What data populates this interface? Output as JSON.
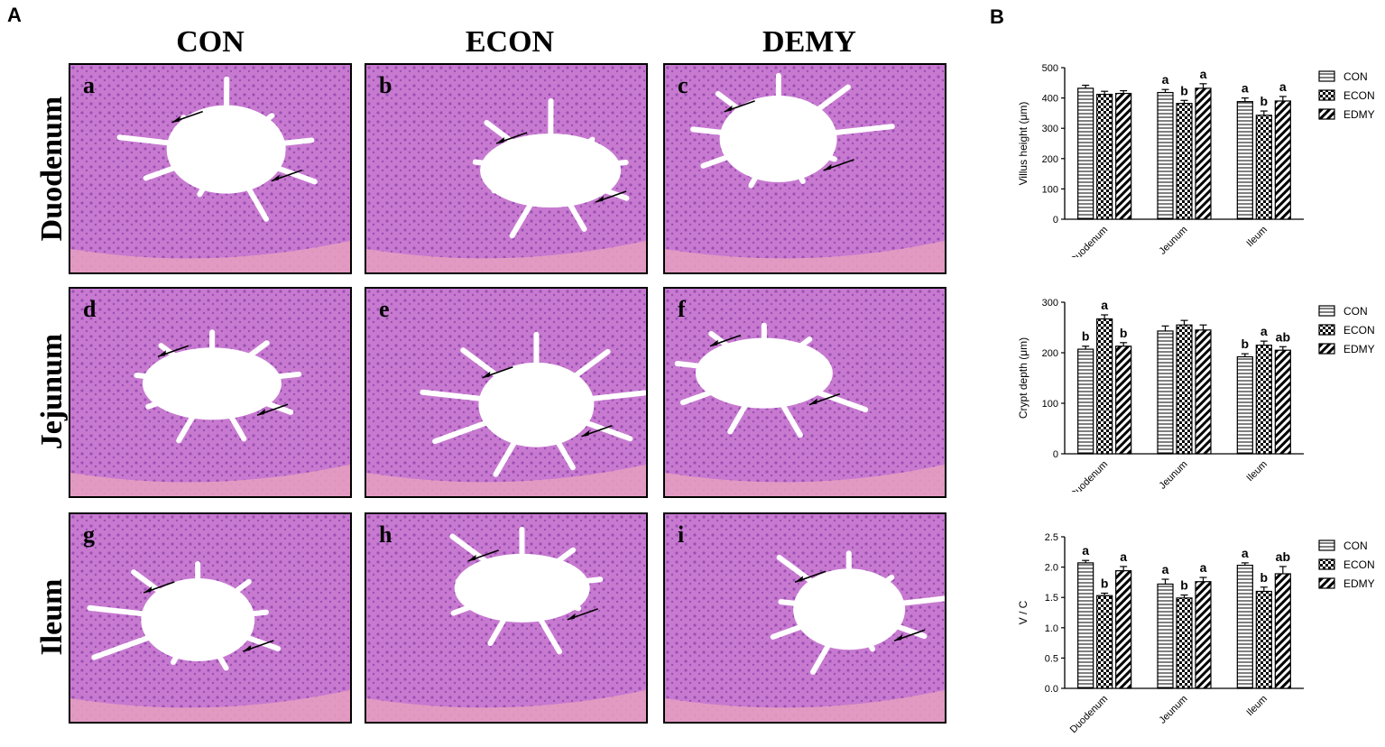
{
  "panel_a_label": "A",
  "panel_b_label": "B",
  "columns": [
    "CON",
    "ECON",
    "DEMY"
  ],
  "rows": [
    "Duodenum",
    "Jejunum",
    "Ileum"
  ],
  "micro_letters": [
    "a",
    "b",
    "c",
    "d",
    "e",
    "f",
    "g",
    "h",
    "i"
  ],
  "colors": {
    "tissue": "#c77ad0",
    "tissue_dark": "#9c4fb3",
    "lumen": "#ffffff",
    "muscle": "#e7a0bf"
  },
  "chart_data": [
    {
      "type": "bar",
      "categories": [
        "Duodenum",
        "Jeunum",
        "Ileum"
      ],
      "ylabel": "Villus height (μm)",
      "ylim": [
        0,
        500
      ],
      "yticks": [
        0,
        100,
        200,
        300,
        400,
        500
      ],
      "series": [
        {
          "name": "CON",
          "values": [
            432,
            418,
            388
          ],
          "errors": [
            10,
            10,
            12
          ],
          "pattern": "hlines"
        },
        {
          "name": "ECON",
          "values": [
            412,
            382,
            343
          ],
          "errors": [
            10,
            10,
            14
          ],
          "pattern": "checker"
        },
        {
          "name": "EDMY",
          "values": [
            415,
            432,
            390
          ],
          "errors": [
            9,
            15,
            15
          ],
          "pattern": "diag"
        }
      ],
      "letters": [
        [
          "",
          "",
          ""
        ],
        [
          "a",
          "b",
          "a"
        ],
        [
          "a",
          "b",
          "a"
        ]
      ],
      "legend": "right"
    },
    {
      "type": "bar",
      "categories": [
        "Duodenum",
        "Jeunum",
        "Ileum"
      ],
      "ylabel": "Crypt depth (μm)",
      "ylim": [
        0,
        300
      ],
      "yticks": [
        0,
        100,
        200,
        300
      ],
      "series": [
        {
          "name": "CON",
          "values": [
            207,
            243,
            192
          ],
          "errors": [
            6,
            10,
            6
          ],
          "pattern": "hlines"
        },
        {
          "name": "ECON",
          "values": [
            267,
            255,
            215
          ],
          "errors": [
            8,
            9,
            8
          ],
          "pattern": "checker"
        },
        {
          "name": "EDMY",
          "values": [
            213,
            245,
            205
          ],
          "errors": [
            7,
            10,
            7
          ],
          "pattern": "diag"
        }
      ],
      "letters": [
        [
          "b",
          "a",
          "b"
        ],
        [
          "",
          "",
          ""
        ],
        [
          "b",
          "a",
          "ab"
        ]
      ],
      "legend": "right"
    },
    {
      "type": "bar",
      "categories": [
        "Duodenum",
        "Jeunum",
        "Ileum"
      ],
      "ylabel": "V / C",
      "ylim": [
        0,
        2.5
      ],
      "yticks": [
        "0.0",
        "0.5",
        "1.0",
        "1.5",
        "2.0",
        "2.5"
      ],
      "series": [
        {
          "name": "CON",
          "values": [
            2.07,
            1.72,
            2.03
          ],
          "errors": [
            0.04,
            0.08,
            0.04
          ],
          "pattern": "hlines"
        },
        {
          "name": "ECON",
          "values": [
            1.53,
            1.49,
            1.6
          ],
          "errors": [
            0.04,
            0.05,
            0.07
          ],
          "pattern": "checker"
        },
        {
          "name": "EDMY",
          "values": [
            1.94,
            1.76,
            1.89
          ],
          "errors": [
            0.07,
            0.07,
            0.12
          ],
          "pattern": "diag"
        }
      ],
      "letters": [
        [
          "a",
          "b",
          "a"
        ],
        [
          "a",
          "b",
          "a"
        ],
        [
          "a",
          "b",
          "ab"
        ]
      ],
      "legend": "right"
    }
  ]
}
